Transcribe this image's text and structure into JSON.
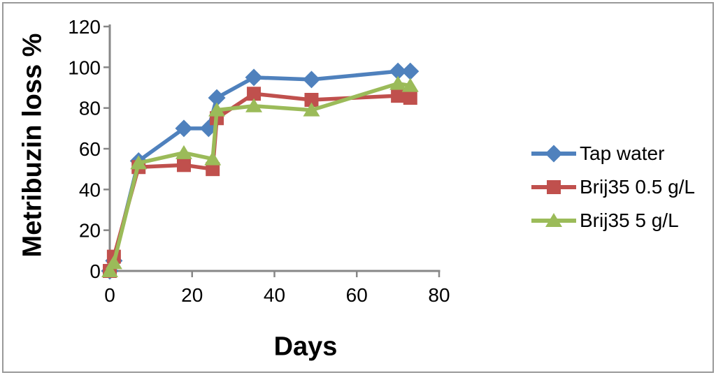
{
  "figure": {
    "background": "#ffffff",
    "border_color": "#999999"
  },
  "chart_data": {
    "type": "line",
    "title": "",
    "xlabel": "Days",
    "ylabel": "Metribuzin loss %",
    "xlim": [
      0,
      80
    ],
    "ylim": [
      0,
      120
    ],
    "x_ticks": [
      0,
      20,
      40,
      60,
      80
    ],
    "y_ticks": [
      0,
      20,
      40,
      60,
      80,
      100,
      120
    ],
    "grid": false,
    "legend_position": "right",
    "axis_color": "#878787",
    "tick_label_color": "#000000",
    "series": [
      {
        "name": "Tap water",
        "color": "#4f81bd",
        "marker": "diamond",
        "x": [
          0,
          1,
          7,
          18,
          24,
          26,
          35,
          49,
          70,
          73
        ],
        "y": [
          0,
          5,
          54,
          70,
          70,
          85,
          95,
          94,
          98,
          98
        ]
      },
      {
        "name": "Brij35 0.5 g/L",
        "color": "#c0504d",
        "marker": "square",
        "x": [
          0,
          1,
          7,
          18,
          25,
          26,
          35,
          49,
          70,
          73
        ],
        "y": [
          0,
          7,
          51,
          52,
          50,
          75,
          87,
          84,
          86,
          85
        ]
      },
      {
        "name": "Brij35 5 g/L",
        "color": "#9bbb59",
        "marker": "triangle",
        "x": [
          0,
          1,
          7,
          18,
          25,
          26,
          35,
          49,
          70,
          73
        ],
        "y": [
          0,
          4,
          53,
          58,
          55,
          79,
          81,
          79,
          92,
          91
        ]
      }
    ]
  }
}
